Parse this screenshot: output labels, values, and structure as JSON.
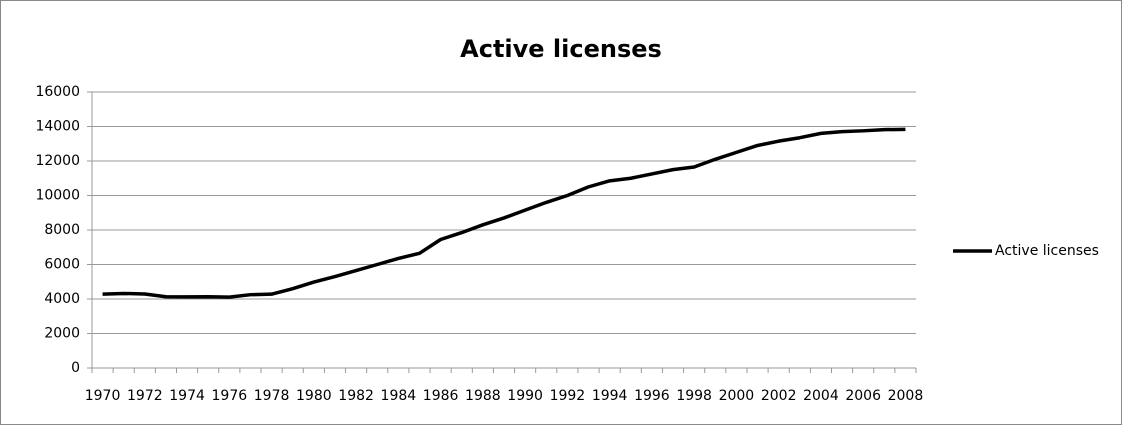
{
  "chart_data": {
    "type": "line",
    "title": "Active licenses",
    "categories": [
      "1970",
      null,
      "1972",
      null,
      "1974",
      null,
      "1976",
      null,
      "1978",
      null,
      "1980",
      null,
      "1982",
      null,
      "1984",
      null,
      "1986",
      null,
      "1988",
      null,
      "1990",
      null,
      "1992",
      null,
      "1994",
      null,
      "1996",
      null,
      "1998",
      null,
      "2000",
      null,
      "2002",
      null,
      "2004",
      null,
      "2006",
      null,
      "2008"
    ],
    "series": [
      {
        "name": "Active licenses",
        "color": "#000000",
        "values": [
          4280,
          4320,
          4290,
          4130,
          4120,
          4130,
          4110,
          4250,
          4280,
          4600,
          4980,
          5300,
          5650,
          6000,
          6350,
          6650,
          7450,
          7850,
          8300,
          8700,
          9150,
          9600,
          10000,
          10500,
          10850,
          11000,
          11250,
          11500,
          11650,
          12100,
          12500,
          12900,
          13150,
          13350,
          13600,
          13700,
          13750,
          13820,
          13830
        ]
      }
    ],
    "ylim": [
      0,
      16000
    ],
    "yticks": [
      0,
      2000,
      4000,
      6000,
      8000,
      10000,
      12000,
      14000,
      16000
    ],
    "grid": true,
    "legend": "right"
  }
}
